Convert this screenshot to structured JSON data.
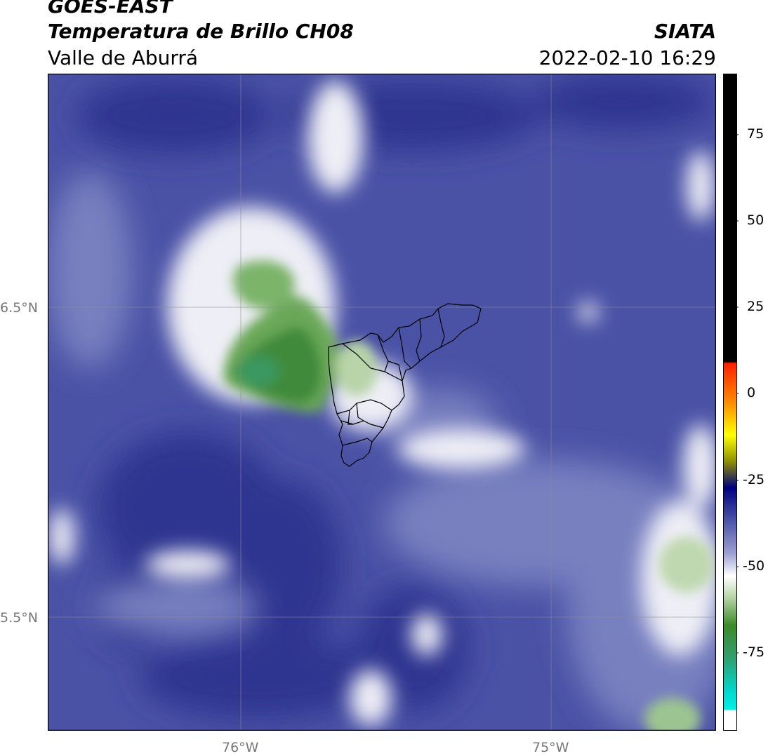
{
  "header": {
    "line1": "GOES-EAST",
    "line2": "Temperatura de Brillo CH08",
    "line3": "Valle de Aburrá",
    "agency": "SIATA",
    "datetime": "2022-02-10 16:29"
  },
  "map": {
    "lat_labels": [
      "6.5°N",
      "5.5°N"
    ],
    "lon_labels": [
      "76°W",
      "75°W"
    ],
    "colors": {
      "deep_blue": "#2a3088",
      "mid_blue": "#4a56a8",
      "light_blue": "#8a92c8",
      "white": "#f4f4f8",
      "light_green": "#a8c898",
      "green": "#4e9440",
      "teal_green": "#3a9860"
    }
  },
  "colorbar": {
    "ticks": [
      "75",
      "50",
      "25",
      "0",
      "-25",
      "-50",
      "-75"
    ],
    "colors": {
      "black": "#000000",
      "red": "#ff2000",
      "orange": "#ff8c00",
      "yellow": "#ffff00",
      "navy": "#000080",
      "blue": "#5058b0",
      "white": "#ffffff",
      "green": "#3c9030",
      "cyan": "#00e8e0"
    }
  }
}
